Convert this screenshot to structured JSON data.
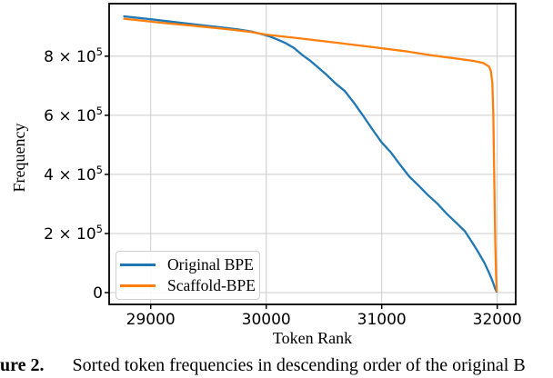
{
  "figure": {
    "caption_prefix": "ure 2.",
    "caption_text": "Sorted token frequencies in descending order of the original B"
  },
  "chart_data": {
    "type": "line",
    "title": "",
    "xlabel": "Token Rank",
    "ylabel": "Frequency",
    "xlim": [
      28640,
      32160
    ],
    "ylim": [
      -40000,
      978000
    ],
    "grid": true,
    "legend_position": "lower-left",
    "axis_color": "#000000",
    "grid_color": "#cccccc",
    "xticks": [
      {
        "value": 29000,
        "label": "29000"
      },
      {
        "value": 30000,
        "label": "30000"
      },
      {
        "value": 31000,
        "label": "31000"
      },
      {
        "value": 32000,
        "label": "32000"
      }
    ],
    "yticks": [
      {
        "value": 0,
        "base": "0",
        "sup": ""
      },
      {
        "value": 200000,
        "base": "2 × 10",
        "sup": "5"
      },
      {
        "value": 400000,
        "base": "4 × 10",
        "sup": "5"
      },
      {
        "value": 600000,
        "base": "6 × 10",
        "sup": "5"
      },
      {
        "value": 800000,
        "base": "8 × 10",
        "sup": "5"
      }
    ],
    "series": [
      {
        "name": "Original BPE",
        "color": "#1f77b4",
        "points": [
          [
            28770,
            935000
          ],
          [
            29000,
            925000
          ],
          [
            29200,
            916000
          ],
          [
            29400,
            907000
          ],
          [
            29600,
            898000
          ],
          [
            29750,
            891000
          ],
          [
            29870,
            884000
          ],
          [
            29950,
            876000
          ],
          [
            30030,
            867000
          ],
          [
            30100,
            856000
          ],
          [
            30170,
            844000
          ],
          [
            30240,
            828000
          ],
          [
            30310,
            805000
          ],
          [
            30380,
            785000
          ],
          [
            30450,
            762000
          ],
          [
            30520,
            738000
          ],
          [
            30600,
            708000
          ],
          [
            30680,
            682000
          ],
          [
            30760,
            642000
          ],
          [
            30840,
            598000
          ],
          [
            30920,
            552000
          ],
          [
            31000,
            508000
          ],
          [
            31080,
            474000
          ],
          [
            31160,
            432000
          ],
          [
            31240,
            392000
          ],
          [
            31320,
            362000
          ],
          [
            31400,
            330000
          ],
          [
            31480,
            302000
          ],
          [
            31560,
            268000
          ],
          [
            31640,
            238000
          ],
          [
            31720,
            208000
          ],
          [
            31780,
            172000
          ],
          [
            31840,
            134000
          ],
          [
            31890,
            100000
          ],
          [
            31930,
            66000
          ],
          [
            31960,
            38000
          ],
          [
            31980,
            16000
          ],
          [
            31995,
            3000
          ]
        ]
      },
      {
        "name": "Scaffold-BPE",
        "color": "#ff7f0e",
        "points": [
          [
            28770,
            927000
          ],
          [
            29100,
            913000
          ],
          [
            29400,
            902000
          ],
          [
            29700,
            890000
          ],
          [
            29870,
            882000
          ],
          [
            30000,
            873000
          ],
          [
            30300,
            860000
          ],
          [
            30600,
            846000
          ],
          [
            30900,
            832000
          ],
          [
            31200,
            817000
          ],
          [
            31450,
            802000
          ],
          [
            31650,
            792000
          ],
          [
            31800,
            784000
          ],
          [
            31880,
            777000
          ],
          [
            31930,
            765000
          ],
          [
            31945,
            750000
          ],
          [
            31958,
            710000
          ],
          [
            31966,
            600000
          ],
          [
            31972,
            450000
          ],
          [
            31978,
            290000
          ],
          [
            31984,
            160000
          ],
          [
            31990,
            60000
          ],
          [
            31996,
            5000
          ]
        ]
      }
    ]
  }
}
